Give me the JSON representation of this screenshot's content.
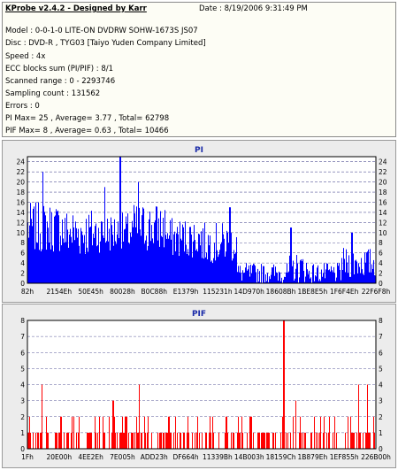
{
  "info": {
    "title": "KProbe v2.4.2 - Designed by Karr",
    "date": "Date : 8/19/2006 9:31:49 PM",
    "lines": [
      "Model : 0-0-1-0 LITE-ON DVDRW SOHW-1673S JS07",
      "Disc : DVD-R , TYG03 [Taiyo Yuden Company Limited]",
      "Speed : 4x",
      "ECC blocks sum (PI/PIF) : 8/1",
      "Scanned range : 0 - 2293746",
      "Sampling count : 131562",
      "Errors : 0",
      "PI Max= 25 , Average= 3.77 , Total= 62798",
      "PIF Max= 8 , Average= 0.63 , Total= 10466"
    ]
  },
  "chart_data": [
    {
      "type": "bar",
      "title": "PI",
      "ylim": [
        0,
        25
      ],
      "yticks": [
        0,
        2,
        4,
        6,
        8,
        10,
        12,
        14,
        16,
        18,
        20,
        22,
        24
      ],
      "xtick_labels": [
        "82h",
        "2154Eh",
        "50E45h",
        "80028h",
        "B0C88h",
        "E1379h",
        "115231h",
        "14D970h",
        "18608Bh",
        "1BE8E5h",
        "1F6F4Eh",
        "22F6F8h"
      ],
      "color": "#0000ff",
      "grid": true,
      "segments": [
        {
          "from": 0.0,
          "to": 0.1,
          "base": 11,
          "amp": 5
        },
        {
          "from": 0.1,
          "to": 0.2,
          "base": 10,
          "amp": 5
        },
        {
          "from": 0.2,
          "to": 0.3,
          "base": 10,
          "amp": 4
        },
        {
          "from": 0.3,
          "to": 0.4,
          "base": 11,
          "amp": 5
        },
        {
          "from": 0.4,
          "to": 0.5,
          "base": 9,
          "amp": 4
        },
        {
          "from": 0.5,
          "to": 0.6,
          "base": 8,
          "amp": 4
        },
        {
          "from": 0.6,
          "to": 0.75,
          "base": 2,
          "amp": 2
        },
        {
          "from": 0.75,
          "to": 0.8,
          "base": 3,
          "amp": 3
        },
        {
          "from": 0.8,
          "to": 0.9,
          "base": 2,
          "amp": 2
        },
        {
          "from": 0.9,
          "to": 1.0,
          "base": 4,
          "amp": 3
        }
      ],
      "peaks": [
        {
          "pos": 0.043,
          "value": 22
        },
        {
          "pos": 0.265,
          "value": 25
        },
        {
          "pos": 0.318,
          "value": 20
        },
        {
          "pos": 0.22,
          "value": 19
        },
        {
          "pos": 0.58,
          "value": 15
        },
        {
          "pos": 0.755,
          "value": 11
        },
        {
          "pos": 0.93,
          "value": 10
        }
      ]
    },
    {
      "type": "bar",
      "title": "PIF",
      "ylim": [
        0,
        8
      ],
      "yticks": [
        0,
        1,
        2,
        3,
        4,
        5,
        6,
        7,
        8
      ],
      "xtick_labels": [
        "1Fh",
        "20E00h",
        "4EE2Eh",
        "7E005h",
        "ADD23h",
        "DF664h",
        "11339Bh",
        "14B003h",
        "18159Ch",
        "1B879Eh",
        "1EF855h",
        "226B00h"
      ],
      "color": "#ff0000",
      "grid": true,
      "segments": [
        {
          "from": 0.0,
          "to": 0.3,
          "base": 1,
          "amp": 1
        },
        {
          "from": 0.3,
          "to": 0.6,
          "base": 1,
          "amp": 1
        },
        {
          "from": 0.6,
          "to": 1.0,
          "base": 1,
          "amp": 1
        }
      ],
      "peaks": [
        {
          "pos": 0.04,
          "value": 4
        },
        {
          "pos": 0.095,
          "value": 2
        },
        {
          "pos": 0.32,
          "value": 4
        },
        {
          "pos": 0.245,
          "value": 3
        },
        {
          "pos": 0.735,
          "value": 8
        },
        {
          "pos": 0.77,
          "value": 3
        },
        {
          "pos": 0.95,
          "value": 4
        },
        {
          "pos": 0.975,
          "value": 4
        }
      ]
    }
  ]
}
